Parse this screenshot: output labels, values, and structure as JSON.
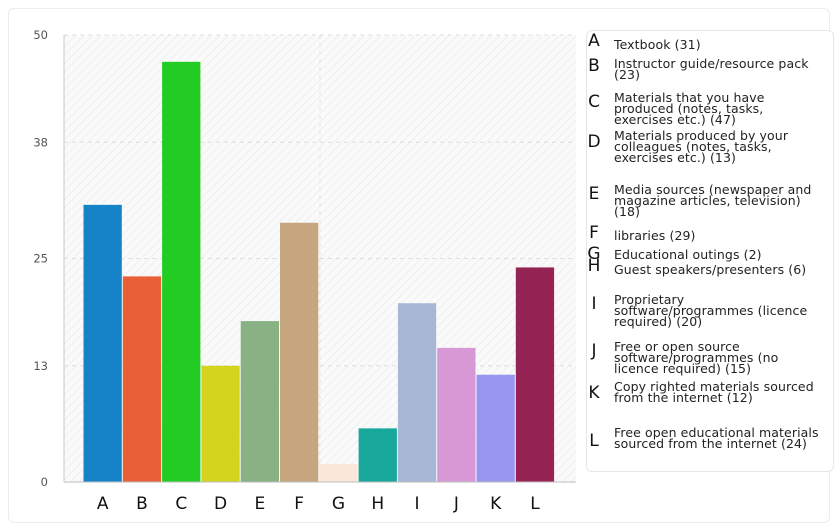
{
  "chart_data": {
    "type": "bar",
    "categories": [
      "A",
      "B",
      "C",
      "D",
      "E",
      "F",
      "G",
      "H",
      "I",
      "J",
      "K",
      "L"
    ],
    "values": [
      31,
      23,
      47,
      13,
      18,
      29,
      2,
      6,
      20,
      15,
      12,
      24
    ],
    "colors": [
      "#1682c8",
      "#e85f38",
      "#22cc22",
      "#d4d41e",
      "#88b184",
      "#c6a67e",
      "#fbe6da",
      "#18a89c",
      "#a7b8d6",
      "#d898d6",
      "#9896f0",
      "#952354"
    ],
    "yticks": [
      "0",
      "13",
      "25",
      "38",
      "50"
    ],
    "ylim": [
      0,
      50
    ],
    "title": "",
    "xlabel": "",
    "ylabel": "",
    "grid": true,
    "legend_position": "right",
    "legend": [
      {
        "letter": "A",
        "text": "Textbook (31)"
      },
      {
        "letter": "B",
        "text": "Instructor guide/resource pack (23)"
      },
      {
        "letter": "C",
        "text": "Materials that you have produced (notes, tasks, exercises etc.) (47)"
      },
      {
        "letter": "D",
        "text": "Materials produced by your colleagues (notes, tasks, exercises etc.) (13)"
      },
      {
        "letter": "E",
        "text": "Media sources (newspaper and magazine articles, television) (18)"
      },
      {
        "letter": "F",
        "text": "libraries (29)"
      },
      {
        "letter": "G",
        "text": "Educational outings (2)"
      },
      {
        "letter": "H",
        "text": "Guest speakers/presenters (6)"
      },
      {
        "letter": "I",
        "text": "Proprietary software/programmes (licence required) (20)"
      },
      {
        "letter": "J",
        "text": "Free or open source software/programmes (no licence required) (15)"
      },
      {
        "letter": "K",
        "text": "Copy righted materials sourced from the internet (12)"
      },
      {
        "letter": "L",
        "text": "Free open educational materials sourced from the internet (24)"
      }
    ]
  }
}
